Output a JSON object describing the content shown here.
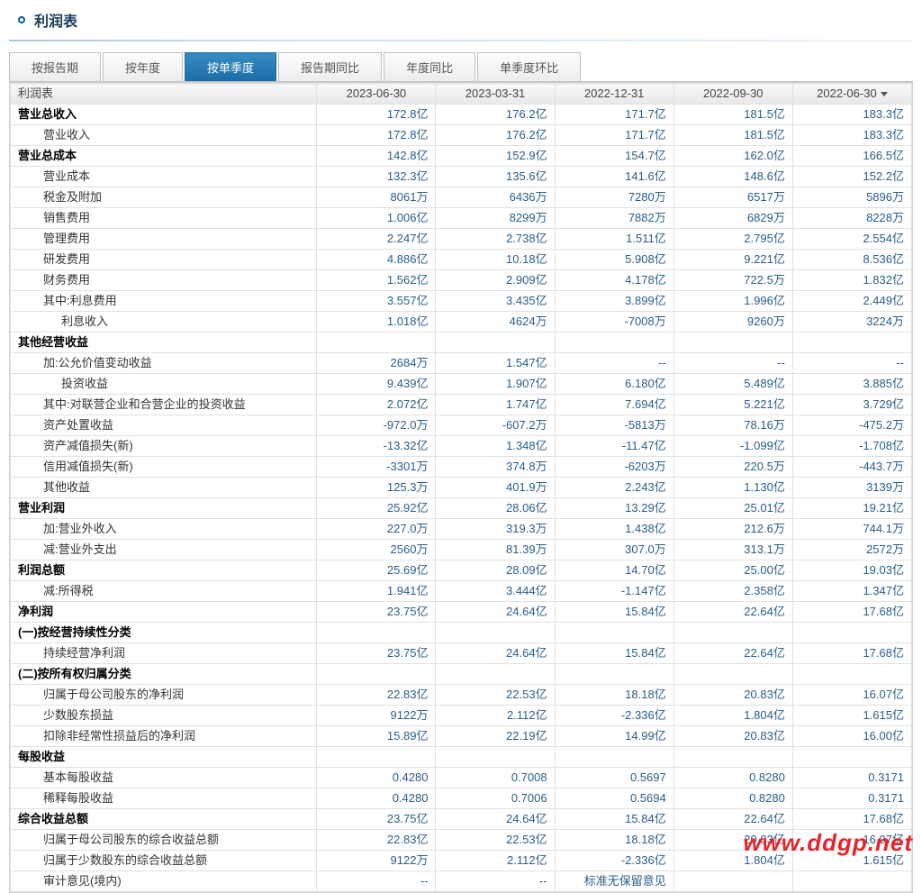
{
  "title": "利润表",
  "tabs": [
    "按报告期",
    "按年度",
    "按单季度",
    "报告期同比",
    "年度同比",
    "单季度环比"
  ],
  "active_tab_index": 2,
  "table_header_label": "利润表",
  "columns": [
    "2023-06-30",
    "2023-03-31",
    "2022-12-31",
    "2022-09-30",
    "2022-06-30"
  ],
  "rows": [
    {
      "label": "营业总收入",
      "bold": true,
      "indent": 0,
      "vals": [
        "172.8亿",
        "176.2亿",
        "171.7亿",
        "181.5亿",
        "183.3亿"
      ]
    },
    {
      "label": "营业收入",
      "bold": false,
      "indent": 1,
      "vals": [
        "172.8亿",
        "176.2亿",
        "171.7亿",
        "181.5亿",
        "183.3亿"
      ]
    },
    {
      "label": "营业总成本",
      "bold": true,
      "indent": 0,
      "vals": [
        "142.8亿",
        "152.9亿",
        "154.7亿",
        "162.0亿",
        "166.5亿"
      ]
    },
    {
      "label": "营业成本",
      "bold": false,
      "indent": 1,
      "vals": [
        "132.3亿",
        "135.6亿",
        "141.6亿",
        "148.6亿",
        "152.2亿"
      ]
    },
    {
      "label": "税金及附加",
      "bold": false,
      "indent": 1,
      "vals": [
        "8061万",
        "6436万",
        "7280万",
        "6517万",
        "5896万"
      ]
    },
    {
      "label": "销售费用",
      "bold": false,
      "indent": 1,
      "vals": [
        "1.006亿",
        "8299万",
        "7882万",
        "6829万",
        "8228万"
      ]
    },
    {
      "label": "管理费用",
      "bold": false,
      "indent": 1,
      "vals": [
        "2.247亿",
        "2.738亿",
        "1.511亿",
        "2.795亿",
        "2.554亿"
      ]
    },
    {
      "label": "研发费用",
      "bold": false,
      "indent": 1,
      "vals": [
        "4.886亿",
        "10.18亿",
        "5.908亿",
        "9.221亿",
        "8.536亿"
      ]
    },
    {
      "label": "财务费用",
      "bold": false,
      "indent": 1,
      "vals": [
        "1.562亿",
        "2.909亿",
        "4.178亿",
        "722.5万",
        "1.832亿"
      ]
    },
    {
      "label": "其中:利息费用",
      "bold": false,
      "indent": 1,
      "vals": [
        "3.557亿",
        "3.435亿",
        "3.899亿",
        "1.996亿",
        "2.449亿"
      ]
    },
    {
      "label": "利息收入",
      "bold": false,
      "indent": 2,
      "vals": [
        "1.018亿",
        "4624万",
        "-7008万",
        "9260万",
        "3224万"
      ]
    },
    {
      "label": "其他经营收益",
      "bold": true,
      "indent": 0,
      "vals": [
        "",
        "",
        "",
        "",
        ""
      ]
    },
    {
      "label": "加:公允价值变动收益",
      "bold": false,
      "indent": 1,
      "vals": [
        "2684万",
        "1.547亿",
        "--",
        "--",
        "--"
      ]
    },
    {
      "label": "投资收益",
      "bold": false,
      "indent": 2,
      "vals": [
        "9.439亿",
        "1.907亿",
        "6.180亿",
        "5.489亿",
        "3.885亿"
      ]
    },
    {
      "label": "其中:对联营企业和合营企业的投资收益",
      "bold": false,
      "indent": 1,
      "vals": [
        "2.072亿",
        "1.747亿",
        "7.694亿",
        "5.221亿",
        "3.729亿"
      ]
    },
    {
      "label": "资产处置收益",
      "bold": false,
      "indent": 1,
      "vals": [
        "-972.0万",
        "-607.2万",
        "-5813万",
        "78.16万",
        "-475.2万"
      ]
    },
    {
      "label": "资产减值损失(新)",
      "bold": false,
      "indent": 1,
      "vals": [
        "-13.32亿",
        "1.348亿",
        "-11.47亿",
        "-1.099亿",
        "-1.708亿"
      ]
    },
    {
      "label": "信用减值损失(新)",
      "bold": false,
      "indent": 1,
      "vals": [
        "-3301万",
        "374.8万",
        "-6203万",
        "220.5万",
        "-443.7万"
      ]
    },
    {
      "label": "其他收益",
      "bold": false,
      "indent": 1,
      "vals": [
        "125.3万",
        "401.9万",
        "2.243亿",
        "1.130亿",
        "3139万"
      ]
    },
    {
      "label": "营业利润",
      "bold": true,
      "indent": 0,
      "vals": [
        "25.92亿",
        "28.06亿",
        "13.29亿",
        "25.01亿",
        "19.21亿"
      ]
    },
    {
      "label": "加:营业外收入",
      "bold": false,
      "indent": 1,
      "vals": [
        "227.0万",
        "319.3万",
        "1.438亿",
        "212.6万",
        "744.1万"
      ]
    },
    {
      "label": "减:营业外支出",
      "bold": false,
      "indent": 1,
      "vals": [
        "2560万",
        "81.39万",
        "307.0万",
        "313.1万",
        "2572万"
      ]
    },
    {
      "label": "利润总额",
      "bold": true,
      "indent": 0,
      "vals": [
        "25.69亿",
        "28.09亿",
        "14.70亿",
        "25.00亿",
        "19.03亿"
      ]
    },
    {
      "label": "减:所得税",
      "bold": false,
      "indent": 1,
      "vals": [
        "1.941亿",
        "3.444亿",
        "-1.147亿",
        "2.358亿",
        "1.347亿"
      ]
    },
    {
      "label": "净利润",
      "bold": true,
      "indent": 0,
      "vals": [
        "23.75亿",
        "24.64亿",
        "15.84亿",
        "22.64亿",
        "17.68亿"
      ]
    },
    {
      "label": "(一)按经营持续性分类",
      "bold": true,
      "indent": 0,
      "vals": [
        "",
        "",
        "",
        "",
        ""
      ]
    },
    {
      "label": "持续经营净利润",
      "bold": false,
      "indent": 1,
      "vals": [
        "23.75亿",
        "24.64亿",
        "15.84亿",
        "22.64亿",
        "17.68亿"
      ]
    },
    {
      "label": "(二)按所有权归属分类",
      "bold": true,
      "indent": 0,
      "vals": [
        "",
        "",
        "",
        "",
        ""
      ]
    },
    {
      "label": "归属于母公司股东的净利润",
      "bold": false,
      "indent": 1,
      "vals": [
        "22.83亿",
        "22.53亿",
        "18.18亿",
        "20.83亿",
        "16.07亿"
      ]
    },
    {
      "label": "少数股东损益",
      "bold": false,
      "indent": 1,
      "vals": [
        "9122万",
        "2.112亿",
        "-2.336亿",
        "1.804亿",
        "1.615亿"
      ]
    },
    {
      "label": "扣除非经常性损益后的净利润",
      "bold": false,
      "indent": 1,
      "vals": [
        "15.89亿",
        "22.19亿",
        "14.99亿",
        "20.83亿",
        "16.00亿"
      ]
    },
    {
      "label": "每股收益",
      "bold": true,
      "indent": 0,
      "vals": [
        "",
        "",
        "",
        "",
        ""
      ]
    },
    {
      "label": "基本每股收益",
      "bold": false,
      "indent": 1,
      "vals": [
        "0.4280",
        "0.7008",
        "0.5697",
        "0.8280",
        "0.3171"
      ]
    },
    {
      "label": "稀释每股收益",
      "bold": false,
      "indent": 1,
      "vals": [
        "0.4280",
        "0.7006",
        "0.5694",
        "0.8280",
        "0.3171"
      ]
    },
    {
      "label": "综合收益总额",
      "bold": true,
      "indent": 0,
      "vals": [
        "23.75亿",
        "24.64亿",
        "15.84亿",
        "22.64亿",
        "17.68亿"
      ]
    },
    {
      "label": "归属于母公司股东的综合收益总额",
      "bold": false,
      "indent": 1,
      "vals": [
        "22.83亿",
        "22.53亿",
        "18.18亿",
        "20.83亿",
        "16.07亿"
      ]
    },
    {
      "label": "归属于少数股东的综合收益总额",
      "bold": false,
      "indent": 1,
      "vals": [
        "9122万",
        "2.112亿",
        "-2.336亿",
        "1.804亿",
        "1.615亿"
      ]
    },
    {
      "label": "审计意见(境内)",
      "bold": false,
      "indent": 1,
      "vals": [
        "--",
        "--",
        "标准无保留意见",
        "",
        ""
      ]
    }
  ],
  "watermark": "www.ddgp.net",
  "colors": {
    "accent": "#1b6da8",
    "link": "#2a5d8a",
    "watermark": "#e6252a"
  }
}
